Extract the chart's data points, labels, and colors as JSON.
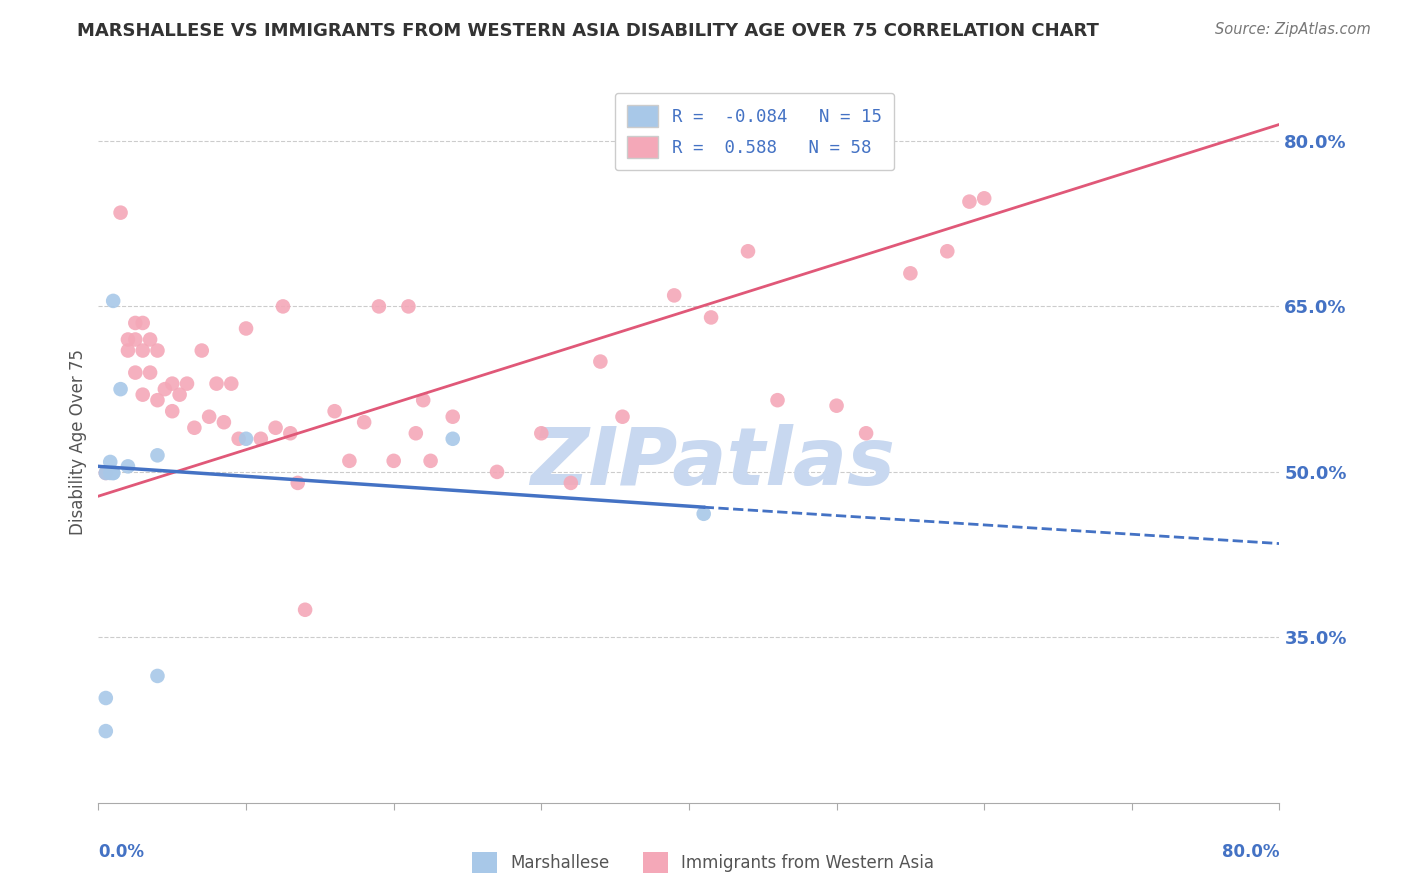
{
  "title": "MARSHALLESE VS IMMIGRANTS FROM WESTERN ASIA DISABILITY AGE OVER 75 CORRELATION CHART",
  "source": "Source: ZipAtlas.com",
  "ylabel": "Disability Age Over 75",
  "y_ticks": [
    0.35,
    0.5,
    0.65,
    0.8
  ],
  "y_tick_labels": [
    "35.0%",
    "50.0%",
    "65.0%",
    "80.0%"
  ],
  "xlim": [
    0.0,
    0.8
  ],
  "ylim": [
    0.2,
    0.855
  ],
  "blue_R": -0.084,
  "blue_N": 15,
  "pink_R": 0.588,
  "pink_N": 58,
  "blue_color": "#a8c8e8",
  "pink_color": "#f4a8b8",
  "blue_line_color": "#4472c4",
  "pink_line_color": "#e05878",
  "grid_color": "#cccccc",
  "title_color": "#333333",
  "axis_label_color": "#4472c4",
  "watermark_color": "#c8d8f0",
  "blue_scatter_x": [
    0.008,
    0.008,
    0.01,
    0.005,
    0.005,
    0.01,
    0.015,
    0.02,
    0.01,
    0.41,
    0.04,
    0.04,
    0.24,
    0.1,
    0.005
  ],
  "blue_scatter_y": [
    0.509,
    0.499,
    0.655,
    0.265,
    0.295,
    0.499,
    0.575,
    0.505,
    0.499,
    0.462,
    0.515,
    0.315,
    0.53,
    0.53,
    0.499
  ],
  "pink_scatter_x": [
    0.005,
    0.015,
    0.02,
    0.02,
    0.025,
    0.025,
    0.025,
    0.03,
    0.03,
    0.03,
    0.035,
    0.035,
    0.04,
    0.04,
    0.045,
    0.05,
    0.05,
    0.055,
    0.06,
    0.065,
    0.07,
    0.075,
    0.08,
    0.085,
    0.09,
    0.095,
    0.1,
    0.11,
    0.12,
    0.125,
    0.13,
    0.135,
    0.14,
    0.16,
    0.17,
    0.18,
    0.19,
    0.2,
    0.21,
    0.215,
    0.22,
    0.225,
    0.24,
    0.27,
    0.3,
    0.32,
    0.34,
    0.355,
    0.39,
    0.415,
    0.44,
    0.46,
    0.5,
    0.52,
    0.55,
    0.575,
    0.59,
    0.6
  ],
  "pink_scatter_y": [
    0.499,
    0.735,
    0.62,
    0.61,
    0.635,
    0.62,
    0.59,
    0.635,
    0.61,
    0.57,
    0.62,
    0.59,
    0.61,
    0.565,
    0.575,
    0.58,
    0.555,
    0.57,
    0.58,
    0.54,
    0.61,
    0.55,
    0.58,
    0.545,
    0.58,
    0.53,
    0.63,
    0.53,
    0.54,
    0.65,
    0.535,
    0.49,
    0.375,
    0.555,
    0.51,
    0.545,
    0.65,
    0.51,
    0.65,
    0.535,
    0.565,
    0.51,
    0.55,
    0.5,
    0.535,
    0.49,
    0.6,
    0.55,
    0.66,
    0.64,
    0.7,
    0.565,
    0.56,
    0.535,
    0.68,
    0.7,
    0.745,
    0.748
  ],
  "blue_line_x_start": 0.0,
  "blue_line_x_solid_end": 0.41,
  "blue_line_x_dash_end": 0.8,
  "blue_line_y_start": 0.505,
  "blue_line_y_solid_end": 0.468,
  "blue_line_y_dash_end": 0.435,
  "pink_line_x_start": 0.0,
  "pink_line_x_end": 0.8,
  "pink_line_y_start": 0.478,
  "pink_line_y_end": 0.815
}
